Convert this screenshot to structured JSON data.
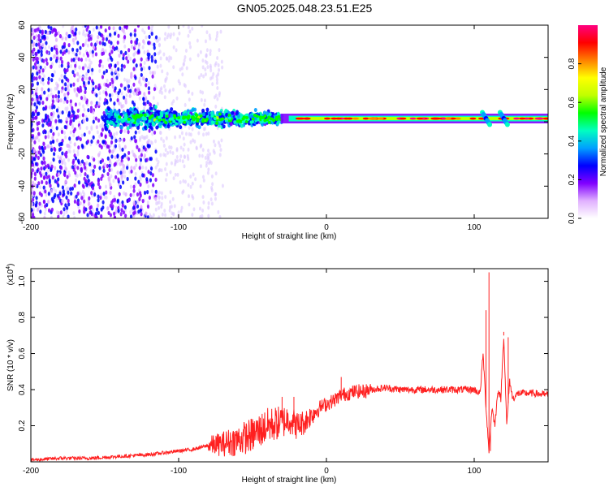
{
  "title": "GN05.2025.048.23.51.E25",
  "chart_data": [
    {
      "type": "heatmap",
      "xlabel": "Height of straight line (km)",
      "ylabel": "Frequency (Hz)",
      "xlim": [
        -200,
        150
      ],
      "ylim": [
        -60,
        60
      ],
      "xticks": [
        "-200",
        "-100",
        "0",
        "100"
      ],
      "yticks": [
        "-60",
        "-40",
        "-20",
        "0",
        "20",
        "40",
        "60"
      ],
      "colorbar": {
        "label": "Normalized spectral amplitude",
        "range": [
          0,
          1
        ],
        "ticks": [
          "0.0",
          "0.2",
          "0.4",
          "0.6",
          "0.8"
        ],
        "colormap": [
          "#ffffff",
          "#e0b0ff",
          "#8000ff",
          "#0000ff",
          "#00a0ff",
          "#00ffc0",
          "#00ff00",
          "#c0ff00",
          "#ffff00",
          "#ff8000",
          "#ff0000",
          "#ff0080"
        ]
      },
      "features": {
        "carrier_frequency_hz": 2,
        "scatter_noise_x_range": [
          -200,
          -115
        ],
        "faint_noise_x_range": [
          -200,
          -70
        ],
        "blob_x_range": [
          -150,
          -30
        ],
        "strong_line_x_range": [
          -20,
          150
        ],
        "disturbance_x": [
          108,
          120
        ]
      }
    },
    {
      "type": "line",
      "xlabel": "Height of straight line (km)",
      "ylabel": "SNR (10 * v/v)",
      "yscale_label": "(x10",
      "yscale_exp": "4",
      "yscale_close": ")",
      "xlim": [
        -200,
        150
      ],
      "ylim": [
        0,
        1.07
      ],
      "xticks": [
        "-200",
        "-100",
        "0",
        "100"
      ],
      "yticks": [
        "0.2",
        "0.4",
        "0.6",
        "0.8",
        "1.0"
      ],
      "color": "#ff2020",
      "series": [
        {
          "x": [
            -200,
            -180,
            -160,
            -140,
            -120,
            -110,
            -100,
            -90,
            -80,
            -70,
            -60,
            -50,
            -40,
            -30,
            -25,
            -20,
            -15,
            -10,
            -5,
            0,
            5,
            10,
            15,
            20,
            25,
            30,
            40,
            50,
            60,
            70,
            80,
            90,
            100,
            104,
            106,
            108,
            110,
            112,
            114,
            116,
            118,
            120,
            122,
            124,
            126,
            130,
            140,
            150
          ],
          "y": [
            0.01,
            0.02,
            0.02,
            0.03,
            0.04,
            0.05,
            0.06,
            0.07,
            0.09,
            0.1,
            0.12,
            0.15,
            0.2,
            0.22,
            0.24,
            0.2,
            0.22,
            0.26,
            0.3,
            0.32,
            0.34,
            0.37,
            0.38,
            0.39,
            0.39,
            0.4,
            0.41,
            0.4,
            0.4,
            0.4,
            0.4,
            0.4,
            0.4,
            0.38,
            0.6,
            0.3,
            0.06,
            0.3,
            0.2,
            0.4,
            0.35,
            0.7,
            0.2,
            0.45,
            0.35,
            0.38,
            0.38,
            0.37
          ]
        }
      ],
      "peaks": [
        {
          "x": 108,
          "y": 0.84
        },
        {
          "x": 110,
          "y": 1.05
        },
        {
          "x": 111,
          "y": 0.06
        },
        {
          "x": 120,
          "y": 0.72
        },
        {
          "x": 123,
          "y": 0.69
        },
        {
          "x": 10,
          "y": 0.47
        },
        {
          "x": -30,
          "y": 0.36
        },
        {
          "x": -22,
          "y": 0.36
        }
      ]
    }
  ]
}
